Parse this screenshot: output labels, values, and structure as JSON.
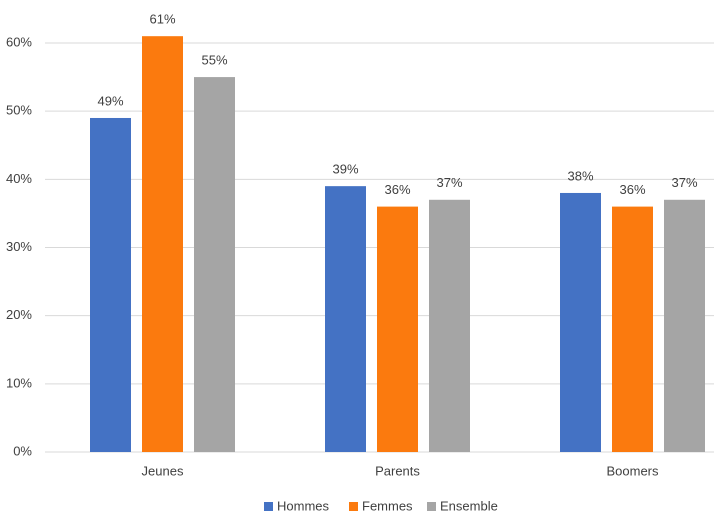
{
  "chart_data": {
    "type": "bar",
    "categories": [
      "Jeunes",
      "Parents",
      "Boomers"
    ],
    "series": [
      {
        "name": "Hommes",
        "color": "#4472c4",
        "values": [
          49,
          39,
          38
        ],
        "value_labels": [
          "49%",
          "39%",
          "38%"
        ]
      },
      {
        "name": "Femmes",
        "color": "#fb7a0e",
        "values": [
          61,
          36,
          36
        ],
        "value_labels": [
          "61%",
          "36%",
          "36%"
        ]
      },
      {
        "name": "Ensemble",
        "color": "#a5a5a5",
        "values": [
          55,
          37,
          37
        ],
        "value_labels": [
          "55%",
          "37%",
          "37%"
        ]
      }
    ],
    "ylim": [
      0,
      60
    ],
    "yticks": [
      {
        "value": 0,
        "label": "0%"
      },
      {
        "value": 10,
        "label": "10%"
      },
      {
        "value": 20,
        "label": "20%"
      },
      {
        "value": 30,
        "label": "30%"
      },
      {
        "value": 40,
        "label": "40%"
      },
      {
        "value": 50,
        "label": "50%"
      },
      {
        "value": 60,
        "label": "60%"
      }
    ],
    "grid": true,
    "legend": "bottom"
  }
}
